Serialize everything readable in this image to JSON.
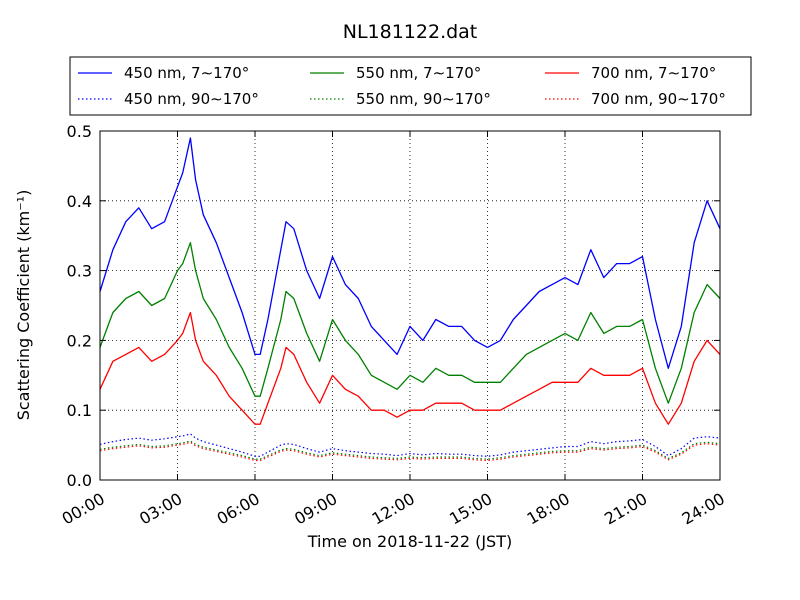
{
  "chart_data": {
    "type": "line",
    "title": "NL181122.dat",
    "xlabel": "Time on 2018-11-22 (JST)",
    "ylabel": "Scattering Coefficient (km⁻¹)",
    "xlim": [
      "00:00",
      "24:00"
    ],
    "ylim": [
      0,
      0.5
    ],
    "x_ticks": [
      "00:00",
      "03:00",
      "06:00",
      "09:00",
      "12:00",
      "15:00",
      "18:00",
      "21:00",
      "24:00"
    ],
    "y_ticks": [
      "0.0",
      "0.1",
      "0.2",
      "0.3",
      "0.4",
      "0.5"
    ],
    "grid": true,
    "legend_position": "top, outside plot, 3 columns",
    "x_hours": [
      0,
      0.5,
      1,
      1.5,
      2,
      2.5,
      3,
      3.2,
      3.5,
      3.7,
      4,
      4.5,
      5,
      5.5,
      6,
      6.2,
      6.5,
      7,
      7.2,
      7.5,
      8,
      8.5,
      9,
      9.5,
      10,
      10.5,
      11,
      11.5,
      12,
      12.5,
      13,
      13.5,
      14,
      14.5,
      15,
      15.5,
      16,
      16.5,
      17,
      17.5,
      18,
      18.5,
      19,
      19.5,
      20,
      20.5,
      21,
      21.5,
      22,
      22.5,
      23,
      23.5,
      24
    ],
    "series": [
      {
        "name": "450 nm, 7∼170°",
        "color": "#0000ff",
        "style": "solid",
        "values": [
          0.27,
          0.33,
          0.37,
          0.39,
          0.36,
          0.37,
          0.42,
          0.44,
          0.49,
          0.43,
          0.38,
          0.34,
          0.29,
          0.24,
          0.18,
          0.18,
          0.23,
          0.33,
          0.37,
          0.36,
          0.3,
          0.26,
          0.32,
          0.28,
          0.26,
          0.22,
          0.2,
          0.18,
          0.22,
          0.2,
          0.23,
          0.22,
          0.22,
          0.2,
          0.19,
          0.2,
          0.23,
          0.25,
          0.27,
          0.28,
          0.29,
          0.28,
          0.33,
          0.29,
          0.31,
          0.31,
          0.32,
          0.23,
          0.16,
          0.22,
          0.34,
          0.4,
          0.36
        ]
      },
      {
        "name": "450 nm, 90∼170°",
        "color": "#0000ff",
        "style": "dotted",
        "values": [
          0.051,
          0.055,
          0.058,
          0.06,
          0.057,
          0.059,
          0.062,
          0.063,
          0.066,
          0.06,
          0.055,
          0.05,
          0.045,
          0.04,
          0.034,
          0.034,
          0.04,
          0.05,
          0.052,
          0.051,
          0.045,
          0.04,
          0.045,
          0.042,
          0.04,
          0.038,
          0.037,
          0.035,
          0.038,
          0.036,
          0.038,
          0.037,
          0.037,
          0.035,
          0.034,
          0.036,
          0.04,
          0.042,
          0.044,
          0.046,
          0.048,
          0.048,
          0.055,
          0.052,
          0.055,
          0.056,
          0.058,
          0.048,
          0.035,
          0.045,
          0.06,
          0.062,
          0.06
        ]
      },
      {
        "name": "550 nm, 7∼170°",
        "color": "#008000",
        "style": "solid",
        "values": [
          0.19,
          0.24,
          0.26,
          0.27,
          0.25,
          0.26,
          0.3,
          0.31,
          0.34,
          0.3,
          0.26,
          0.23,
          0.19,
          0.16,
          0.12,
          0.12,
          0.16,
          0.23,
          0.27,
          0.26,
          0.21,
          0.17,
          0.23,
          0.2,
          0.18,
          0.15,
          0.14,
          0.13,
          0.15,
          0.14,
          0.16,
          0.15,
          0.15,
          0.14,
          0.14,
          0.14,
          0.16,
          0.18,
          0.19,
          0.2,
          0.21,
          0.2,
          0.24,
          0.21,
          0.22,
          0.22,
          0.23,
          0.16,
          0.11,
          0.16,
          0.24,
          0.28,
          0.26
        ]
      },
      {
        "name": "550 nm, 90∼170°",
        "color": "#008000",
        "style": "dotted",
        "values": [
          0.044,
          0.047,
          0.049,
          0.051,
          0.048,
          0.049,
          0.052,
          0.053,
          0.056,
          0.051,
          0.047,
          0.043,
          0.039,
          0.035,
          0.03,
          0.03,
          0.035,
          0.043,
          0.045,
          0.044,
          0.039,
          0.035,
          0.039,
          0.037,
          0.035,
          0.033,
          0.032,
          0.031,
          0.033,
          0.032,
          0.033,
          0.033,
          0.033,
          0.031,
          0.03,
          0.032,
          0.035,
          0.037,
          0.039,
          0.041,
          0.042,
          0.042,
          0.047,
          0.045,
          0.047,
          0.048,
          0.05,
          0.042,
          0.031,
          0.039,
          0.052,
          0.054,
          0.052
        ]
      },
      {
        "name": "700 nm, 7∼170°",
        "color": "#ff0000",
        "style": "solid",
        "values": [
          0.13,
          0.17,
          0.18,
          0.19,
          0.17,
          0.18,
          0.2,
          0.21,
          0.24,
          0.2,
          0.17,
          0.15,
          0.12,
          0.1,
          0.08,
          0.08,
          0.11,
          0.16,
          0.19,
          0.18,
          0.14,
          0.11,
          0.15,
          0.13,
          0.12,
          0.1,
          0.1,
          0.09,
          0.1,
          0.1,
          0.11,
          0.11,
          0.11,
          0.1,
          0.1,
          0.1,
          0.11,
          0.12,
          0.13,
          0.14,
          0.14,
          0.14,
          0.16,
          0.15,
          0.15,
          0.15,
          0.16,
          0.11,
          0.08,
          0.11,
          0.17,
          0.2,
          0.18
        ]
      },
      {
        "name": "700 nm, 90∼170°",
        "color": "#ff0000",
        "style": "dotted",
        "values": [
          0.042,
          0.045,
          0.047,
          0.049,
          0.046,
          0.047,
          0.05,
          0.051,
          0.054,
          0.049,
          0.045,
          0.041,
          0.037,
          0.033,
          0.028,
          0.028,
          0.033,
          0.041,
          0.043,
          0.042,
          0.037,
          0.033,
          0.037,
          0.035,
          0.033,
          0.031,
          0.03,
          0.029,
          0.031,
          0.03,
          0.031,
          0.031,
          0.031,
          0.029,
          0.028,
          0.03,
          0.033,
          0.035,
          0.037,
          0.039,
          0.04,
          0.04,
          0.045,
          0.043,
          0.045,
          0.046,
          0.048,
          0.04,
          0.029,
          0.037,
          0.05,
          0.052,
          0.05
        ]
      }
    ]
  }
}
